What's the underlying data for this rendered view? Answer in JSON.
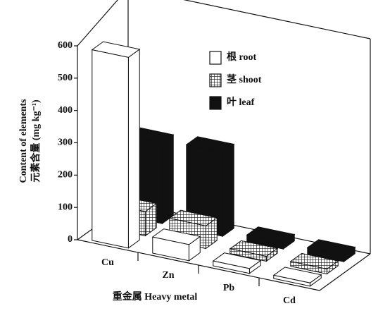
{
  "chart_data": {
    "type": "bar3d",
    "y_label_line1": "Content of elements",
    "y_label_line2": "元素含量 (mg kg⁻¹)",
    "x_label": "重金属 Heavy metal",
    "categories": [
      "Cu",
      "Zn",
      "Pb",
      "Cd"
    ],
    "series": [
      {
        "name": "根 root",
        "color": "#ffffff",
        "values": [
          590,
          50,
          15,
          10
        ]
      },
      {
        "name": "茎 shoot",
        "color": "#ffffff",
        "hatch": "grid",
        "values": [
          75,
          70,
          15,
          15
        ]
      },
      {
        "name": "叶 leaf",
        "color": "#111111",
        "values": [
          250,
          260,
          20,
          20
        ]
      }
    ],
    "ylim": [
      0,
      600
    ],
    "yticks": [
      0,
      100,
      200,
      300,
      400,
      500,
      600
    ]
  }
}
